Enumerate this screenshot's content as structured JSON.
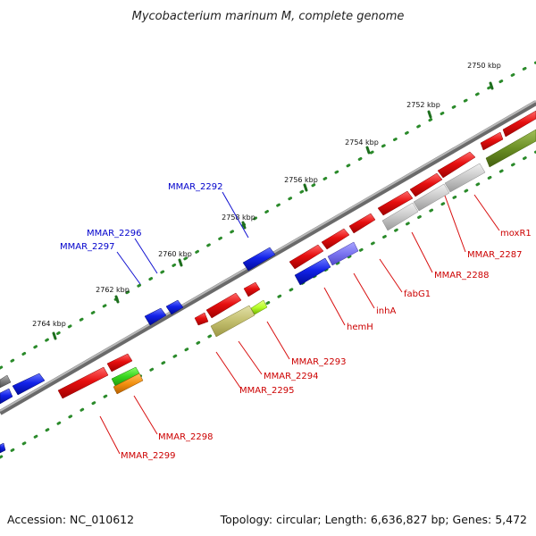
{
  "title": "Mycobacterium marinum M, complete genome",
  "footer": {
    "accession": "Accession: NC_010612",
    "summary": "Topology: circular; Length: 6,636,827 bp; Genes: 5,472"
  },
  "colors": {
    "backbone": "#8a8a8a",
    "tick": "#2a8a2a",
    "forward_gene": "#e01818",
    "reverse_gene": "#1020e0",
    "label_forward": "#cc0000",
    "label_reverse": "#0000cc",
    "label_line_forward": "#d81010",
    "label_line_reverse": "#1010d0"
  },
  "ticks": {
    "upper": [
      "2750 kbp",
      "2752 kbp",
      "2754 kbp",
      "2756 kbp",
      "2758 kbp",
      "2760 kbp",
      "2762 kbp",
      "2764 kbp"
    ]
  },
  "labels": {
    "forward": [
      "moxR1",
      "MMAR_2287",
      "MMAR_2288",
      "fabG1",
      "inhA",
      "hemH",
      "MMAR_2293",
      "MMAR_2294",
      "MMAR_2295",
      "MMAR_2298",
      "MMAR_2299"
    ],
    "reverse": [
      "MMAR_2292",
      "MMAR_2296",
      "MMAR_2297"
    ]
  }
}
